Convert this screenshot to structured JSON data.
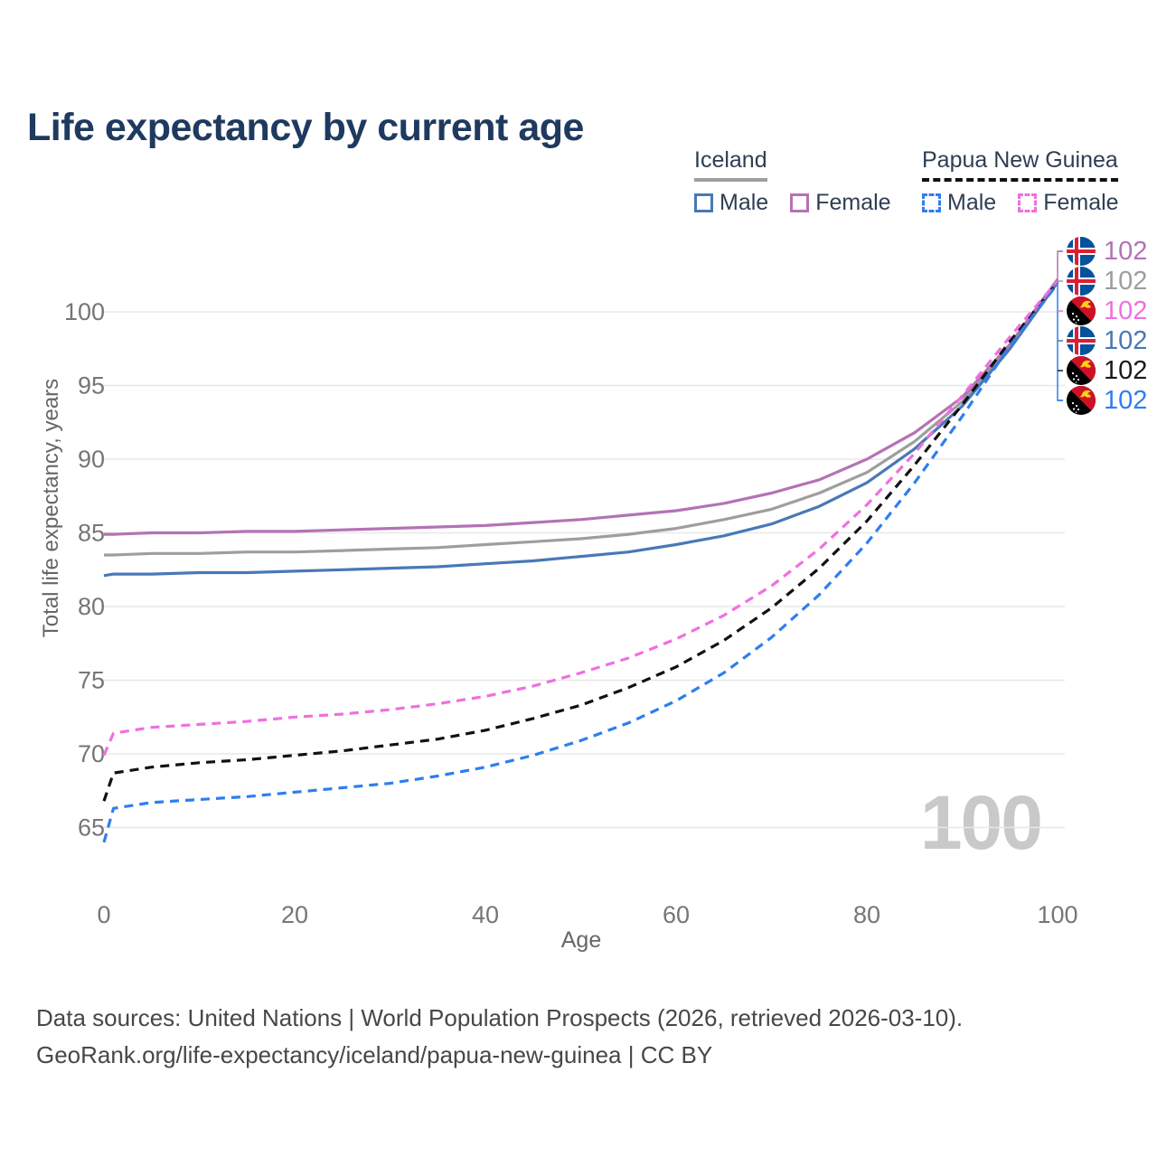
{
  "title": "Life expectancy by current age",
  "legend": {
    "groups": [
      {
        "label": "Iceland",
        "line_style": "solid",
        "line_color": "#9e9e9e",
        "items": [
          {
            "label": "Male",
            "color": "#4878b8"
          },
          {
            "label": "Female",
            "color": "#b472b5"
          }
        ]
      },
      {
        "label": "Papua New Guinea",
        "line_style": "dashed",
        "line_color": "#111111",
        "items": [
          {
            "label": "Male",
            "color": "#2e7ef0"
          },
          {
            "label": "Female",
            "color": "#f06fe0"
          }
        ]
      }
    ]
  },
  "chart_data": {
    "type": "line",
    "title": "Life expectancy by current age",
    "xlabel": "Age",
    "ylabel": "Total life expectancy, years",
    "xlim": [
      0,
      100
    ],
    "ylim": [
      63,
      103
    ],
    "xticks": [
      0,
      20,
      40,
      60,
      80,
      100
    ],
    "yticks": [
      65,
      70,
      75,
      80,
      85,
      90,
      95,
      100
    ],
    "grid": "horizontal",
    "legend_position": "top-right",
    "x": [
      0,
      1,
      5,
      10,
      15,
      20,
      25,
      30,
      35,
      40,
      45,
      50,
      55,
      60,
      65,
      70,
      75,
      80,
      85,
      90,
      95,
      100
    ],
    "series": [
      {
        "name": "Iceland (both sexes)",
        "country": "Iceland",
        "sex": "all",
        "color": "#9e9e9e",
        "dash": false,
        "values": [
          83.5,
          83.5,
          83.6,
          83.6,
          83.7,
          83.7,
          83.8,
          83.9,
          84.0,
          84.2,
          84.4,
          84.6,
          84.9,
          85.3,
          85.9,
          86.6,
          87.7,
          89.1,
          91.2,
          93.9,
          97.6,
          102.1
        ]
      },
      {
        "name": "Iceland Male",
        "country": "Iceland",
        "sex": "male",
        "color": "#4878b8",
        "dash": false,
        "values": [
          82.1,
          82.2,
          82.2,
          82.3,
          82.3,
          82.4,
          82.5,
          82.6,
          82.7,
          82.9,
          83.1,
          83.4,
          83.7,
          84.2,
          84.8,
          85.6,
          86.8,
          88.4,
          90.7,
          93.6,
          97.5,
          102.0
        ]
      },
      {
        "name": "Iceland Female",
        "country": "Iceland",
        "sex": "female",
        "color": "#b472b5",
        "dash": false,
        "values": [
          84.9,
          84.9,
          85.0,
          85.0,
          85.1,
          85.1,
          85.2,
          85.3,
          85.4,
          85.5,
          85.7,
          85.9,
          86.2,
          86.5,
          87.0,
          87.7,
          88.6,
          90.0,
          91.8,
          94.2,
          97.8,
          102.2
        ]
      },
      {
        "name": "Papua New Guinea (both sexes)",
        "country": "Papua New Guinea",
        "sex": "all",
        "color": "#111111",
        "dash": true,
        "values": [
          66.8,
          68.7,
          69.1,
          69.4,
          69.6,
          69.9,
          70.2,
          70.6,
          71.0,
          71.6,
          72.4,
          73.3,
          74.5,
          75.9,
          77.7,
          79.9,
          82.6,
          85.8,
          89.6,
          93.7,
          98.0,
          102.0
        ]
      },
      {
        "name": "Papua New Guinea Male",
        "country": "Papua New Guinea",
        "sex": "male",
        "color": "#2e7ef0",
        "dash": true,
        "values": [
          64.0,
          66.3,
          66.7,
          66.9,
          67.1,
          67.4,
          67.7,
          68.0,
          68.5,
          69.1,
          69.9,
          70.9,
          72.1,
          73.6,
          75.5,
          77.9,
          80.8,
          84.3,
          88.4,
          92.9,
          97.7,
          101.9
        ]
      },
      {
        "name": "Papua New Guinea Female",
        "country": "Papua New Guinea",
        "sex": "female",
        "color": "#f06fe0",
        "dash": true,
        "values": [
          69.9,
          71.4,
          71.8,
          72.0,
          72.2,
          72.5,
          72.7,
          73.0,
          73.4,
          73.9,
          74.6,
          75.5,
          76.5,
          77.8,
          79.4,
          81.4,
          83.9,
          86.9,
          90.4,
          94.3,
          98.3,
          102.1
        ]
      }
    ],
    "end_labels": [
      {
        "flag": "iceland",
        "value": "102",
        "color": "#b472b5"
      },
      {
        "flag": "iceland",
        "value": "102",
        "color": "#9e9e9e"
      },
      {
        "flag": "png",
        "value": "102",
        "color": "#f06fe0"
      },
      {
        "flag": "iceland",
        "value": "102",
        "color": "#4878b8"
      },
      {
        "flag": "png",
        "value": "102",
        "color": "#1a1a1a"
      },
      {
        "flag": "png",
        "value": "102",
        "color": "#2e7ef0"
      }
    ]
  },
  "watermark": "100",
  "footer": {
    "line1": "Data sources: United Nations | World Population Prospects (2026, retrieved 2026-03-10).",
    "line2": "GeoRank.org/life-expectancy/iceland/papua-new-guinea | CC BY"
  },
  "colors": {
    "title": "#1e3a5f",
    "tick_label": "#767676",
    "axis_title": "#666666",
    "gridline": "#e8e8e8",
    "watermark": "#c9c9c9",
    "footer_text": "#474747"
  }
}
